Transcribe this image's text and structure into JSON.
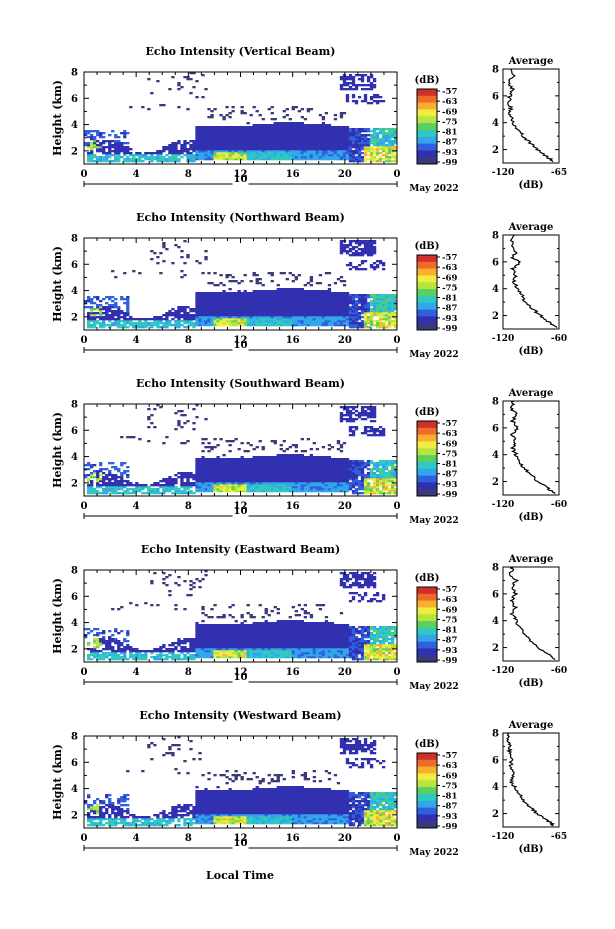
{
  "figure": {
    "xlabel": "Local Time",
    "colorbar_unit": "(dB)",
    "colorbar_ticks": [
      "-57",
      "-63",
      "-69",
      "-75",
      "-81",
      "-87",
      "-93",
      "-99"
    ],
    "colorbar_colors": [
      "#d0302a",
      "#f06a2a",
      "#f8b030",
      "#f0ec40",
      "#b8e440",
      "#5ad060",
      "#30c8c0",
      "#30a8e8",
      "#3060e0",
      "#3030b0",
      "#3a3a7a"
    ],
    "date_label": "May 2022"
  },
  "chart_data": [
    {
      "type": "heatmap",
      "title": "Echo Intensity (Vertical Beam)",
      "ylabel": "Height (km)",
      "xlim": [
        0,
        24
      ],
      "ylim": [
        1,
        8
      ],
      "x_ticks": [
        "0",
        "4",
        "8",
        "12",
        "16",
        "20",
        "0"
      ],
      "y_ticks": [
        "2",
        "4",
        "6",
        "8"
      ],
      "day_label": "10",
      "avg_title": "Average",
      "avg_xlabel": "(dB)",
      "avg_x_ticks": [
        "-120",
        "-65"
      ],
      "avg_xlim": [
        -120,
        -65
      ],
      "avg_y_ticks": [
        "2",
        "4",
        "6",
        "8"
      ],
      "avg_profile": [
        [
          -70,
          1.1
        ],
        [
          -78,
          1.5
        ],
        [
          -86,
          2.0
        ],
        [
          -93,
          2.5
        ],
        [
          -100,
          3.0
        ],
        [
          -105,
          3.5
        ],
        [
          -110,
          4.0
        ],
        [
          -113,
          4.5
        ],
        [
          -112,
          5.0
        ],
        [
          -115,
          5.5
        ],
        [
          -113,
          6.0
        ],
        [
          -110,
          6.5
        ],
        [
          -114,
          7.0
        ],
        [
          -110,
          7.5
        ],
        [
          -112,
          8.0
        ]
      ]
    },
    {
      "type": "heatmap",
      "title": "Echo Intensity (Northward Beam)",
      "ylabel": "Height (km)",
      "xlim": [
        0,
        24
      ],
      "ylim": [
        1,
        8
      ],
      "x_ticks": [
        "0",
        "4",
        "8",
        "12",
        "16",
        "20",
        "0"
      ],
      "y_ticks": [
        "2",
        "4",
        "6",
        "8"
      ],
      "day_label": "10",
      "avg_title": "Average",
      "avg_xlabel": "(dB)",
      "avg_x_ticks": [
        "-120",
        "-60"
      ],
      "avg_xlim": [
        -120,
        -60
      ],
      "avg_y_ticks": [
        "2",
        "4",
        "6",
        "8"
      ],
      "avg_profile": [
        [
          -62,
          1.1
        ],
        [
          -70,
          1.5
        ],
        [
          -80,
          2.0
        ],
        [
          -88,
          2.5
        ],
        [
          -96,
          3.0
        ],
        [
          -100,
          3.5
        ],
        [
          -105,
          4.0
        ],
        [
          -108,
          4.5
        ],
        [
          -106,
          5.0
        ],
        [
          -110,
          5.5
        ],
        [
          -100,
          6.0
        ],
        [
          -110,
          6.3
        ],
        [
          -106,
          6.7
        ],
        [
          -112,
          7.2
        ],
        [
          -108,
          8.0
        ]
      ]
    },
    {
      "type": "heatmap",
      "title": "Echo Intensity (Southward Beam)",
      "ylabel": "Height (km)",
      "xlim": [
        0,
        24
      ],
      "ylim": [
        1,
        8
      ],
      "x_ticks": [
        "0",
        "4",
        "8",
        "12",
        "16",
        "20",
        "0"
      ],
      "y_ticks": [
        "2",
        "4",
        "6",
        "8"
      ],
      "day_label": "10",
      "avg_title": "Average",
      "avg_xlabel": "(dB)",
      "avg_x_ticks": [
        "-120",
        "-60"
      ],
      "avg_xlim": [
        -120,
        -60
      ],
      "avg_y_ticks": [
        "2",
        "4",
        "6",
        "8"
      ],
      "avg_profile": [
        [
          -63,
          1.1
        ],
        [
          -72,
          1.5
        ],
        [
          -82,
          2.0
        ],
        [
          -90,
          2.5
        ],
        [
          -98,
          3.0
        ],
        [
          -102,
          3.5
        ],
        [
          -106,
          4.0
        ],
        [
          -110,
          4.5
        ],
        [
          -106,
          5.0
        ],
        [
          -111,
          5.5
        ],
        [
          -104,
          6.0
        ],
        [
          -110,
          6.5
        ],
        [
          -105,
          7.0
        ],
        [
          -112,
          7.5
        ],
        [
          -108,
          8.0
        ]
      ]
    },
    {
      "type": "heatmap",
      "title": "Echo Intensity (Eastward Beam)",
      "ylabel": "Height (km)",
      "xlim": [
        0,
        24
      ],
      "ylim": [
        1,
        8
      ],
      "x_ticks": [
        "0",
        "4",
        "8",
        "12",
        "16",
        "20",
        "0"
      ],
      "y_ticks": [
        "2",
        "4",
        "6",
        "8"
      ],
      "day_label": "10",
      "avg_title": "Average",
      "avg_xlabel": "(dB)",
      "avg_x_ticks": [
        "-120",
        "-60"
      ],
      "avg_xlim": [
        -120,
        -60
      ],
      "avg_y_ticks": [
        "2",
        "4",
        "6",
        "8"
      ],
      "avg_profile": [
        [
          -64,
          1.1
        ],
        [
          -72,
          1.5
        ],
        [
          -82,
          2.0
        ],
        [
          -90,
          2.5
        ],
        [
          -97,
          3.0
        ],
        [
          -102,
          3.5
        ],
        [
          -106,
          4.0
        ],
        [
          -110,
          4.5
        ],
        [
          -107,
          5.0
        ],
        [
          -111,
          5.5
        ],
        [
          -106,
          6.0
        ],
        [
          -110,
          6.5
        ],
        [
          -106,
          7.0
        ],
        [
          -112,
          7.5
        ],
        [
          -109,
          8.0
        ]
      ]
    },
    {
      "type": "heatmap",
      "title": "Echo Intensity (Westward Beam)",
      "ylabel": "Height (km)",
      "xlim": [
        0,
        24
      ],
      "ylim": [
        1,
        8
      ],
      "x_ticks": [
        "0",
        "4",
        "8",
        "12",
        "16",
        "20",
        "0"
      ],
      "y_ticks": [
        "2",
        "4",
        "6",
        "8"
      ],
      "day_label": "10",
      "avg_title": "Average",
      "avg_xlabel": "(dB)",
      "avg_x_ticks": [
        "-120",
        "-65"
      ],
      "avg_xlim": [
        -120,
        -65
      ],
      "avg_y_ticks": [
        "2",
        "4",
        "6",
        "8"
      ],
      "avg_profile": [
        [
          -70,
          1.1
        ],
        [
          -76,
          1.5
        ],
        [
          -86,
          2.0
        ],
        [
          -94,
          2.5
        ],
        [
          -100,
          3.0
        ],
        [
          -104,
          3.5
        ],
        [
          -109,
          4.0
        ],
        [
          -112,
          4.5
        ],
        [
          -110,
          5.0
        ],
        [
          -113,
          5.5
        ],
        [
          -111,
          6.0
        ],
        [
          -114,
          6.5
        ],
        [
          -112,
          7.0
        ],
        [
          -116,
          7.5
        ],
        [
          -114,
          8.0
        ]
      ]
    }
  ]
}
